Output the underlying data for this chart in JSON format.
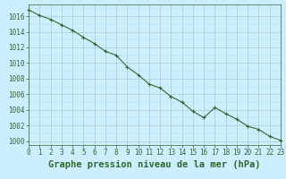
{
  "x_values": [
    0,
    1,
    2,
    3,
    4,
    5,
    6,
    7,
    8,
    9,
    10,
    11,
    12,
    13,
    14,
    15,
    16,
    17,
    18,
    19,
    20,
    21,
    22,
    23
  ],
  "y_values": [
    1016.8,
    1016.1,
    1015.6,
    1014.9,
    1014.2,
    1013.3,
    1012.5,
    1011.5,
    1011.0,
    1009.5,
    1008.5,
    1007.3,
    1006.8,
    1005.7,
    1005.0,
    1003.8,
    1003.0,
    1004.3,
    1003.5,
    1002.8,
    1001.9,
    1001.5,
    1000.6,
    1000.1
  ],
  "xlabel": "Graphe pression niveau de la mer (hPa)",
  "xlim": [
    0,
    23
  ],
  "ylim": [
    999.5,
    1017.5
  ],
  "yticks": [
    1000,
    1002,
    1004,
    1006,
    1008,
    1010,
    1012,
    1014,
    1016
  ],
  "xticks": [
    0,
    1,
    2,
    3,
    4,
    5,
    6,
    7,
    8,
    9,
    10,
    11,
    12,
    13,
    14,
    15,
    16,
    17,
    18,
    19,
    20,
    21,
    22,
    23
  ],
  "line_color": "#2d6a2d",
  "marker": "+",
  "marker_size": 3,
  "marker_edge_width": 0.8,
  "line_width": 0.8,
  "bg_color": "#cceeff",
  "grid_color_major": "#aacccc",
  "grid_color_minor": "#bbdddd",
  "axis_color": "#2d6a2d",
  "label_color": "#2d6a2d",
  "tick_label_size": 5.5,
  "xlabel_font_size": 7.5
}
